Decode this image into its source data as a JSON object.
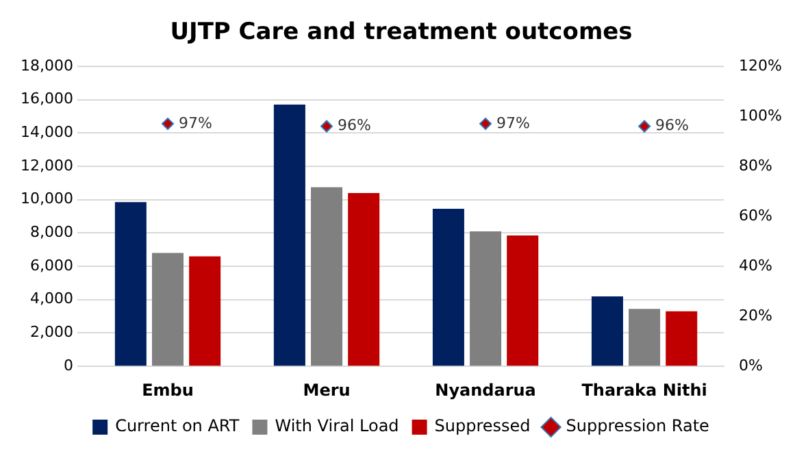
{
  "chart_data": {
    "type": "bar",
    "title": "UJTP Care and treatment outcomes",
    "categories": [
      "Embu",
      "Meru",
      "Nyandarua",
      "Tharaka Nithi"
    ],
    "series": [
      {
        "name": "Current on ART",
        "color": "#002060",
        "values": [
          9850,
          15700,
          9450,
          4200
        ]
      },
      {
        "name": "With Viral Load",
        "color": "#808080",
        "values": [
          6800,
          10750,
          8100,
          3450
        ]
      },
      {
        "name": "Suppressed",
        "color": "#c00000",
        "values": [
          6600,
          10400,
          7850,
          3300
        ]
      },
      {
        "name": "Suppression Rate",
        "type": "scatter",
        "axis": "y2",
        "color": "#c00000",
        "marker": "diamond",
        "values": [
          97,
          96,
          97,
          96
        ],
        "value_labels": [
          "97%",
          "96%",
          "97%",
          "96%"
        ]
      }
    ],
    "ylim": [
      0,
      18000
    ],
    "yticks": [
      {
        "value": 0,
        "label": "0"
      },
      {
        "value": 2000,
        "label": "2,000"
      },
      {
        "value": 4000,
        "label": "4,000"
      },
      {
        "value": 6000,
        "label": "6,000"
      },
      {
        "value": 8000,
        "label": "8,000"
      },
      {
        "value": 10000,
        "label": "10,000"
      },
      {
        "value": 12000,
        "label": "12,000"
      },
      {
        "value": 14000,
        "label": "14,000"
      },
      {
        "value": 16000,
        "label": "16,000"
      },
      {
        "value": 18000,
        "label": "18,000"
      }
    ],
    "y2lim": [
      0,
      120
    ],
    "y2ticks": [
      {
        "value": 0,
        "label": "0%"
      },
      {
        "value": 20,
        "label": "20%"
      },
      {
        "value": 40,
        "label": "40%"
      },
      {
        "value": 60,
        "label": "60%"
      },
      {
        "value": 80,
        "label": "80%"
      },
      {
        "value": 100,
        "label": "100%"
      },
      {
        "value": 120,
        "label": "120%"
      }
    ],
    "grid": "y",
    "legend": "bottom"
  }
}
